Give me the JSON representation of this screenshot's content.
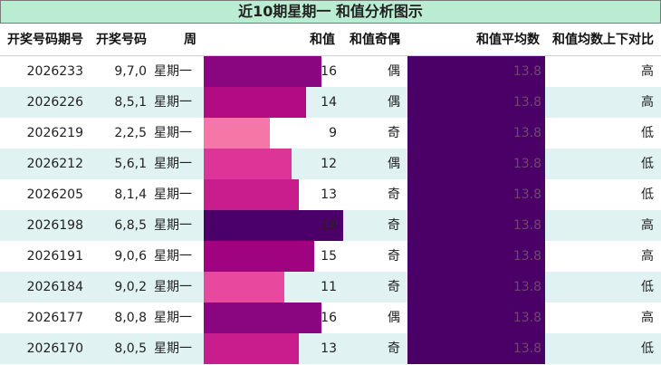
{
  "title": "近10期星期一 和值分析图示",
  "headers": {
    "issue": "开奖号码期号",
    "numbers": "开奖号码",
    "weekday": "周",
    "sum": "和值",
    "parity": "和值奇偶",
    "avg": "和值平均数",
    "compare": "和值均数上下对比"
  },
  "colors": {
    "title_bg": "#b9ecd0",
    "avg_bar": "#4b0068",
    "avg_text": "#6a4a6a",
    "row_alt": "#e0f2f1"
  },
  "rows": [
    {
      "issue": "2026233",
      "numbers": "9,7,0",
      "weekday": "星期一",
      "sum": "16",
      "parity": "偶",
      "avg": "13.8",
      "compare": "高",
      "color": "#8a0680"
    },
    {
      "issue": "2026226",
      "numbers": "8,5,1",
      "weekday": "星期一",
      "sum": "14",
      "parity": "偶",
      "avg": "13.8",
      "compare": "高",
      "color": "#b30b82"
    },
    {
      "issue": "2026219",
      "numbers": "2,2,5",
      "weekday": "星期一",
      "sum": "9",
      "parity": "奇",
      "avg": "13.8",
      "compare": "低",
      "color": "#f577a8"
    },
    {
      "issue": "2026212",
      "numbers": "5,6,1",
      "weekday": "星期一",
      "sum": "12",
      "parity": "偶",
      "avg": "13.8",
      "compare": "低",
      "color": "#dd3597"
    },
    {
      "issue": "2026205",
      "numbers": "8,1,4",
      "weekday": "星期一",
      "sum": "13",
      "parity": "奇",
      "avg": "13.8",
      "compare": "低",
      "color": "#c91d8e"
    },
    {
      "issue": "2026198",
      "numbers": "6,8,5",
      "weekday": "星期一",
      "sum": "19",
      "parity": "奇",
      "avg": "13.8",
      "compare": "高",
      "color": "#4a0068"
    },
    {
      "issue": "2026191",
      "numbers": "9,0,6",
      "weekday": "星期一",
      "sum": "15",
      "parity": "奇",
      "avg": "13.8",
      "compare": "高",
      "color": "#a0037f"
    },
    {
      "issue": "2026184",
      "numbers": "9,0,2",
      "weekday": "星期一",
      "sum": "11",
      "parity": "奇",
      "avg": "13.8",
      "compare": "低",
      "color": "#e8489e"
    },
    {
      "issue": "2026177",
      "numbers": "8,0,8",
      "weekday": "星期一",
      "sum": "16",
      "parity": "偶",
      "avg": "13.8",
      "compare": "高",
      "color": "#8a0680"
    },
    {
      "issue": "2026170",
      "numbers": "8,0,5",
      "weekday": "星期一",
      "sum": "13",
      "parity": "奇",
      "avg": "13.8",
      "compare": "低",
      "color": "#c91d8e"
    }
  ],
  "chart_data": {
    "type": "table",
    "title": "近10期星期一 和值分析图示",
    "columns": [
      "开奖号码期号",
      "开奖号码",
      "周",
      "和值",
      "和值奇偶",
      "和值平均数",
      "和值均数上下对比"
    ],
    "x": [
      "2026233",
      "2026226",
      "2026219",
      "2026212",
      "2026205",
      "2026198",
      "2026191",
      "2026184",
      "2026177",
      "2026170"
    ],
    "values": [
      16,
      14,
      9,
      12,
      13,
      19,
      15,
      11,
      16,
      13
    ],
    "average": 13.8,
    "bar_max": 19
  }
}
